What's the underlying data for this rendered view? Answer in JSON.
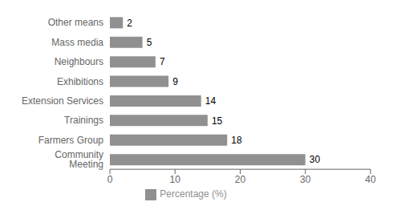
{
  "chart_data": {
    "type": "bar",
    "orientation": "horizontal",
    "categories": [
      "Community Meeting",
      "Farmers Group",
      "Trainings",
      "Extension Services",
      "Exhibitions",
      "Neighbours",
      "Mass media",
      "Other means"
    ],
    "series": [
      {
        "name": "Percentage (%)",
        "color": "#909090",
        "values": [
          30,
          18,
          15,
          14,
          9,
          7,
          5,
          2
        ]
      }
    ],
    "xlim": [
      0,
      40
    ],
    "xticks": [
      0,
      10,
      20,
      30,
      40
    ],
    "data_labels": true,
    "legend": "bottom",
    "grid": false
  }
}
